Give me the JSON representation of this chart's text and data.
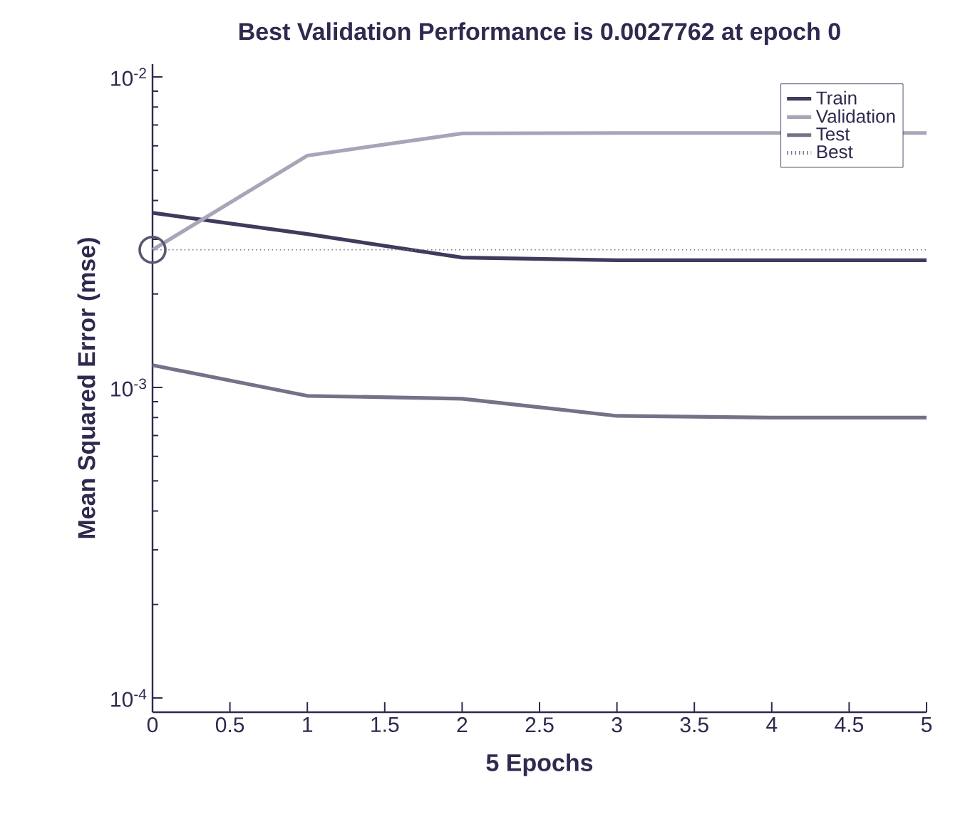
{
  "chart_data": {
    "type": "line",
    "title": "Best Validation Performance is 0.0027762 at epoch 0",
    "xlabel": "5 Epochs",
    "ylabel": "Mean Squared Error  (mse)",
    "x": [
      0,
      1,
      2,
      3,
      4,
      5
    ],
    "series": [
      {
        "name": "Train",
        "color": "#3f3b5c",
        "values": [
          0.00365,
          0.00312,
          0.00262,
          0.00257,
          0.00257,
          0.00257
        ]
      },
      {
        "name": "Validation",
        "color": "#aaa4b8",
        "values": [
          0.0027762,
          0.00558,
          0.00658,
          0.0066,
          0.0066,
          0.0066
        ]
      },
      {
        "name": "Test",
        "color": "#767088",
        "values": [
          0.00118,
          0.00094,
          0.00092,
          0.00081,
          0.0008,
          0.0008
        ]
      },
      {
        "name": "Best",
        "color": "#7a7590",
        "line_style": "dotted",
        "values": [
          0.0027762,
          0.0027762,
          0.0027762,
          0.0027762,
          0.0027762,
          0.0027762
        ]
      },
      {
        "type": "scatter",
        "color": "#5a5670",
        "marker": "circle",
        "x": [
          0
        ],
        "values": [
          0.0027762
        ]
      }
    ],
    "log": "y",
    "legend": "top right",
    "xlim": [
      0,
      5
    ],
    "xticks": [
      0,
      0.5,
      1,
      1.5,
      2,
      2.5,
      3,
      3.5,
      4,
      4.5,
      5
    ],
    "ylim": [
      9e-05,
      0.011
    ],
    "yticks": [
      {
        "value": 0.0001,
        "label": "10$^{-4}$"
      },
      {
        "value": 0.001,
        "label": "10$^{-3}$"
      },
      {
        "value": 0.01,
        "label": "10$^{-2}$"
      }
    ]
  }
}
